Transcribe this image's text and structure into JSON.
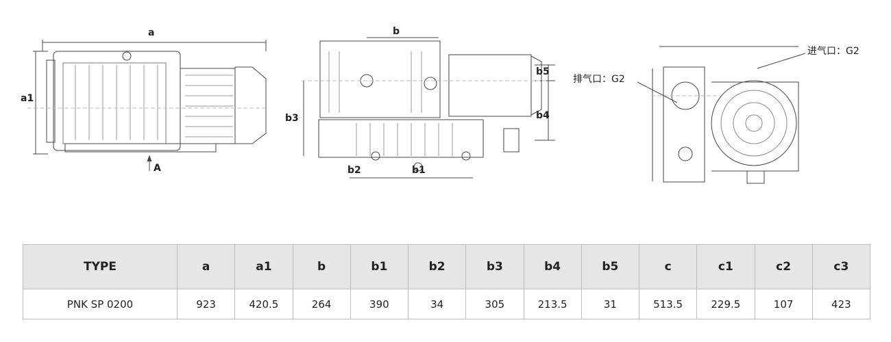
{
  "drawing": {
    "labels": {
      "a": "a",
      "a1": "a1",
      "A": "A",
      "b": "b",
      "b1": "b1",
      "b2": "b2",
      "b3": "b3",
      "b4": "b4",
      "b5": "b5",
      "exhaust": "排气口：G2",
      "inlet": "进气口：G2"
    }
  },
  "table": {
    "headers": [
      "TYPE",
      "a",
      "a1",
      "b",
      "b1",
      "b2",
      "b3",
      "b4",
      "b5",
      "c",
      "c1",
      "c2",
      "c3"
    ],
    "rows": [
      [
        "PNK SP 0200",
        "923",
        "420.5",
        "264",
        "390",
        "34",
        "305",
        "213.5",
        "31",
        "513.5",
        "229.5",
        "107",
        "423"
      ]
    ]
  }
}
